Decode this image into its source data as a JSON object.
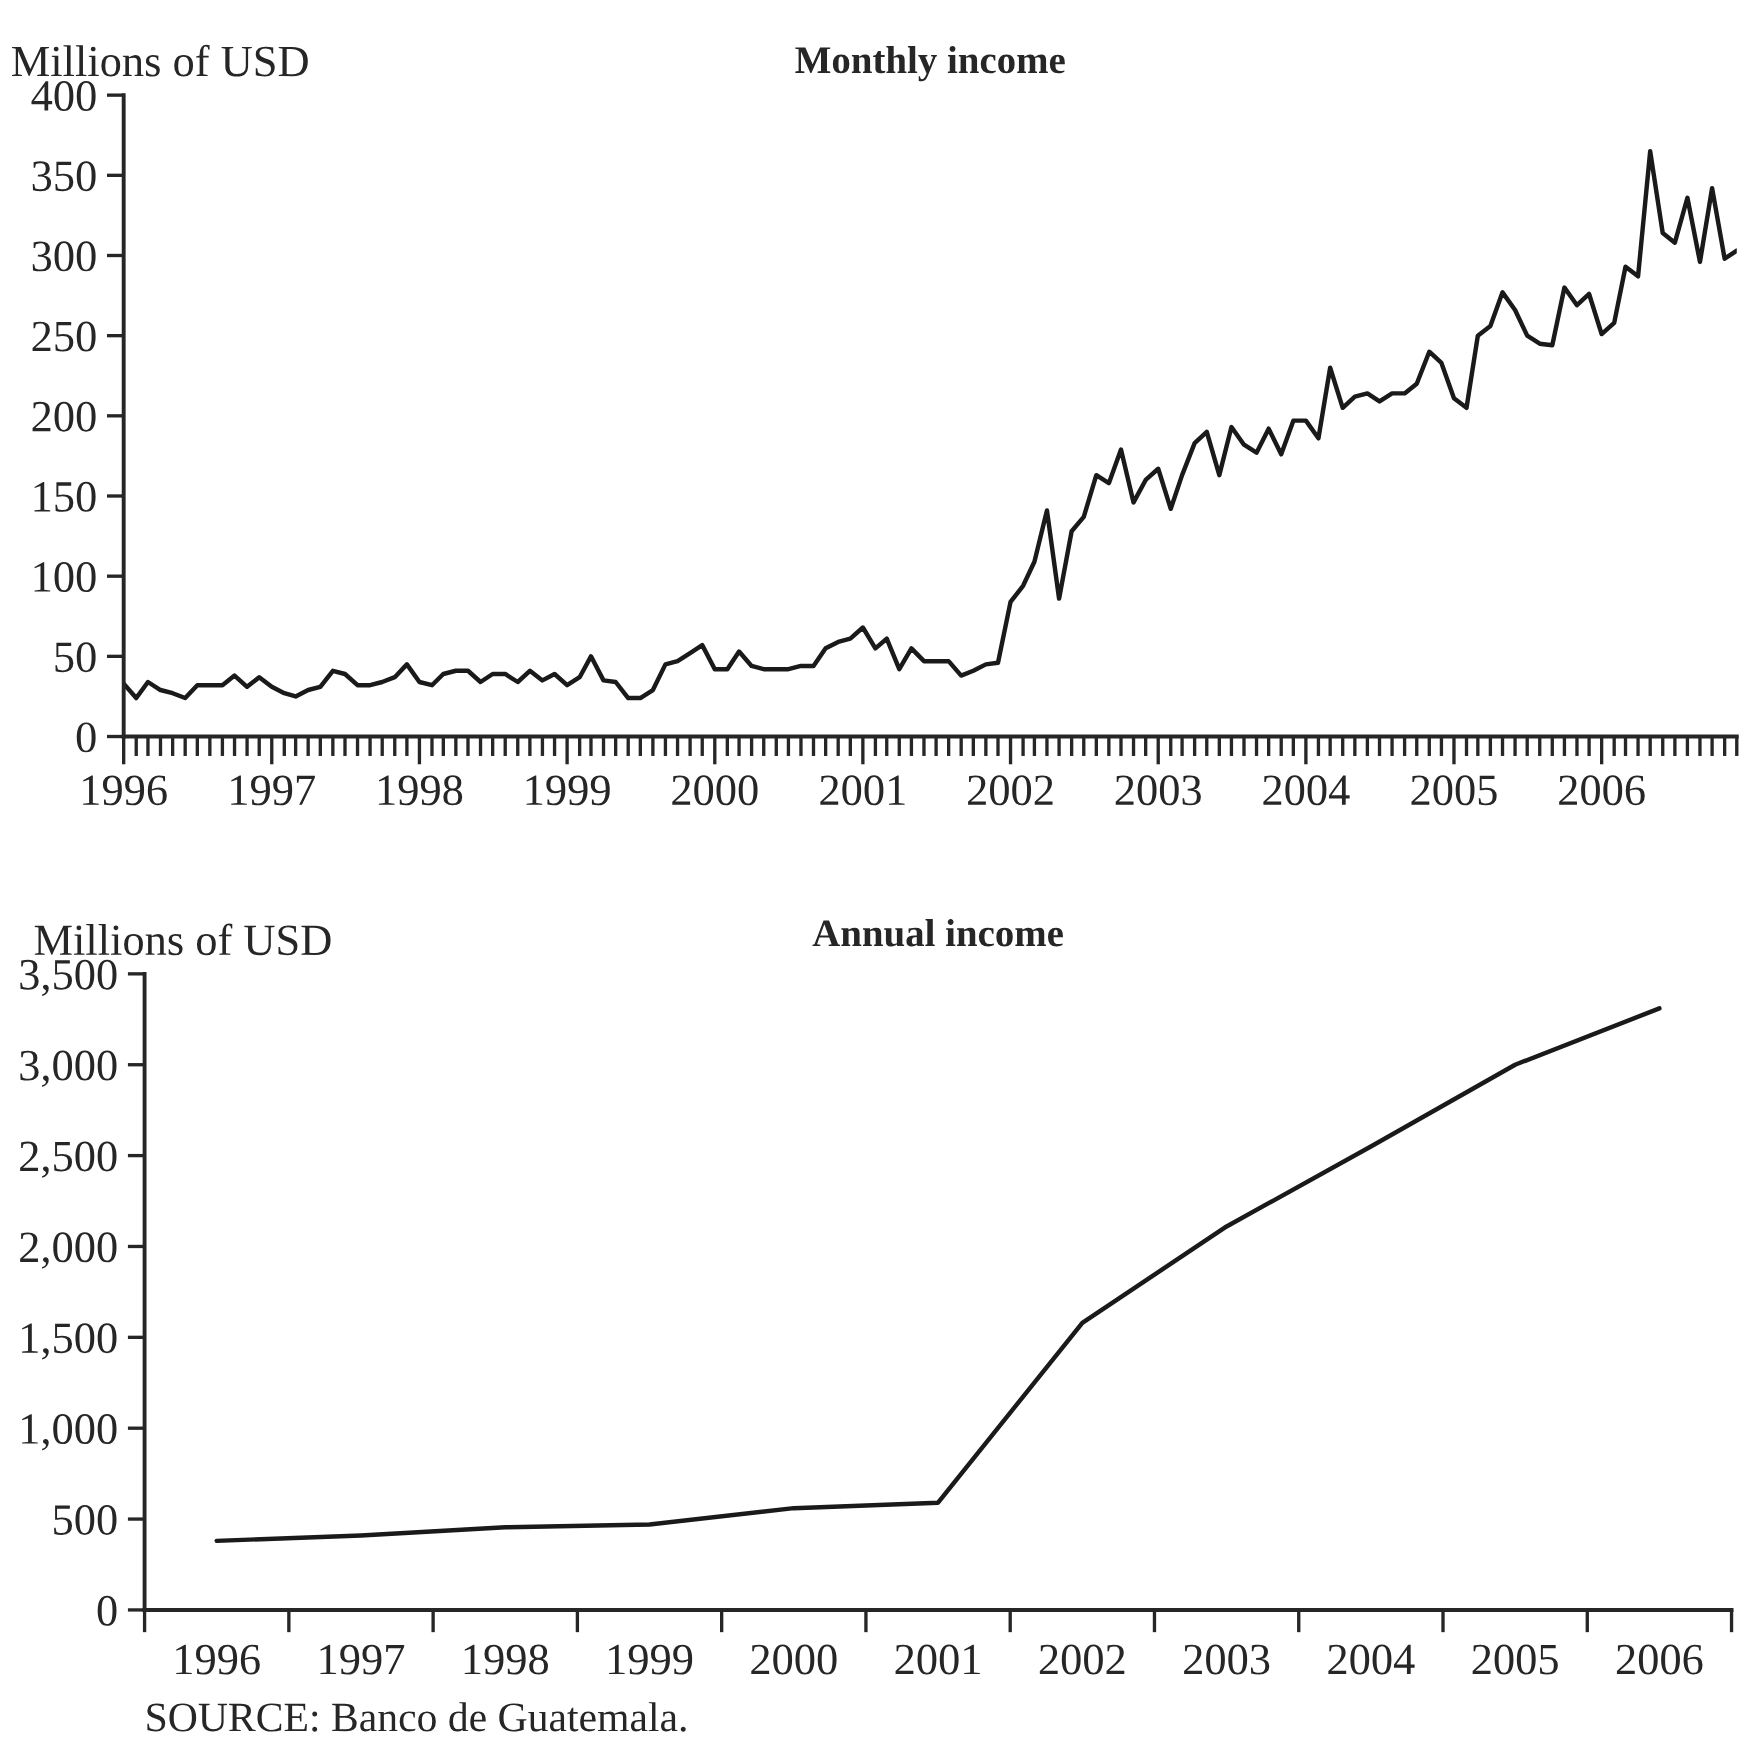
{
  "chart_data": [
    {
      "type": "line",
      "title": "Monthly income",
      "ylabel": "Millions of USD",
      "x": [
        "1996-01",
        "1996-02",
        "1996-03",
        "1996-04",
        "1996-05",
        "1996-06",
        "1996-07",
        "1996-08",
        "1996-09",
        "1996-10",
        "1996-11",
        "1996-12",
        "1997-01",
        "1997-02",
        "1997-03",
        "1997-04",
        "1997-05",
        "1997-06",
        "1997-07",
        "1997-08",
        "1997-09",
        "1997-10",
        "1997-11",
        "1997-12",
        "1998-01",
        "1998-02",
        "1998-03",
        "1998-04",
        "1998-05",
        "1998-06",
        "1998-07",
        "1998-08",
        "1998-09",
        "1998-10",
        "1998-11",
        "1998-12",
        "1999-01",
        "1999-02",
        "1999-03",
        "1999-04",
        "1999-05",
        "1999-06",
        "1999-07",
        "1999-08",
        "1999-09",
        "1999-10",
        "1999-11",
        "1999-12",
        "2000-01",
        "2000-02",
        "2000-03",
        "2000-04",
        "2000-05",
        "2000-06",
        "2000-07",
        "2000-08",
        "2000-09",
        "2000-10",
        "2000-11",
        "2000-12",
        "2001-01",
        "2001-02",
        "2001-03",
        "2001-04",
        "2001-05",
        "2001-06",
        "2001-07",
        "2001-08",
        "2001-09",
        "2001-10",
        "2001-11",
        "2001-12",
        "2002-01",
        "2002-02",
        "2002-03",
        "2002-04",
        "2002-05",
        "2002-06",
        "2002-07",
        "2002-08",
        "2002-09",
        "2002-10",
        "2002-11",
        "2002-12",
        "2003-01",
        "2003-02",
        "2003-03",
        "2003-04",
        "2003-05",
        "2003-06",
        "2003-07",
        "2003-08",
        "2003-09",
        "2003-10",
        "2003-11",
        "2003-12",
        "2004-01",
        "2004-02",
        "2004-03",
        "2004-04",
        "2004-05",
        "2004-06",
        "2004-07",
        "2004-08",
        "2004-09",
        "2004-10",
        "2004-11",
        "2004-12",
        "2005-01",
        "2005-02",
        "2005-03",
        "2005-04",
        "2005-05",
        "2005-06",
        "2005-07",
        "2005-08",
        "2005-09",
        "2005-10",
        "2005-11",
        "2005-12",
        "2006-01",
        "2006-02",
        "2006-03",
        "2006-04",
        "2006-05",
        "2006-06",
        "2006-07",
        "2006-08",
        "2006-09",
        "2006-10",
        "2006-11",
        "2006-12"
      ],
      "series": [
        {
          "color": "#1a1a1a",
          "values": [
            33,
            24,
            34,
            29,
            27,
            24,
            32,
            32,
            32,
            38,
            31,
            37,
            31,
            27,
            25,
            29,
            31,
            41,
            39,
            32,
            32,
            34,
            37,
            45,
            34,
            32,
            39,
            41,
            41,
            34,
            39,
            39,
            34,
            41,
            35,
            39,
            32,
            37,
            50,
            35,
            34,
            24,
            24,
            29,
            45,
            47,
            52,
            57,
            42,
            42,
            53,
            44,
            42,
            42,
            42,
            44,
            44,
            55,
            59,
            61,
            68,
            55,
            61,
            42,
            55,
            47,
            47,
            47,
            38,
            41,
            45,
            46,
            84,
            94,
            109,
            141,
            86,
            128,
            137,
            163,
            158,
            179,
            146,
            160,
            167,
            142,
            163,
            183,
            190,
            163,
            193,
            182,
            177,
            192,
            176,
            197,
            197,
            186,
            230,
            205,
            212,
            214,
            209,
            214,
            214,
            220,
            240,
            233,
            211,
            205,
            250,
            256,
            277,
            266,
            250,
            245,
            244,
            280,
            269,
            276,
            251,
            258,
            293,
            287,
            365,
            314,
            308,
            336,
            296,
            342,
            298,
            303
          ]
        }
      ],
      "xlim": [
        "1996-01",
        "2006-12"
      ],
      "xticks": [
        {
          "value": "1996-01",
          "label": "1996"
        },
        {
          "value": "1997-01",
          "label": "1997"
        },
        {
          "value": "1998-01",
          "label": "1998"
        },
        {
          "value": "1999-01",
          "label": "1999"
        },
        {
          "value": "2000-01",
          "label": "2000"
        },
        {
          "value": "2001-01",
          "label": "2001"
        },
        {
          "value": "2002-01",
          "label": "2002"
        },
        {
          "value": "2003-01",
          "label": "2003"
        },
        {
          "value": "2004-01",
          "label": "2004"
        },
        {
          "value": "2005-01",
          "label": "2005"
        },
        {
          "value": "2006-01",
          "label": "2006"
        }
      ],
      "ylim": [
        0,
        400
      ],
      "yticks": [
        0,
        50,
        100,
        150,
        200,
        250,
        300,
        350,
        400
      ],
      "grid": false,
      "legend": false,
      "marker": "none",
      "line_style": "solid"
    },
    {
      "type": "line",
      "title": "Annual income",
      "ylabel": "Millions of USD",
      "categories": [
        "1996",
        "1997",
        "1998",
        "1999",
        "2000",
        "2001",
        "2002",
        "2003",
        "2004",
        "2005",
        "2006"
      ],
      "series": [
        {
          "color": "#1a1a1a",
          "values": [
            380,
            410,
            455,
            470,
            560,
            590,
            1580,
            2110,
            2550,
            3000,
            3310
          ]
        }
      ],
      "ylim": [
        0,
        3500
      ],
      "yticks": [
        0,
        {
          "value": 500,
          "label": "500"
        },
        {
          "value": 1000,
          "label": "1,000"
        },
        {
          "value": 1500,
          "label": "1,500"
        },
        {
          "value": 2000,
          "label": "2,000"
        },
        {
          "value": 2500,
          "label": "2,500"
        },
        {
          "value": 3000,
          "label": "3,000"
        },
        {
          "value": 3500,
          "label": "3,500"
        }
      ],
      "annotations": [
        "SOURCE: Banco de Guatemala."
      ],
      "grid": false,
      "legend": false,
      "marker": "none",
      "line_style": "solid"
    }
  ]
}
